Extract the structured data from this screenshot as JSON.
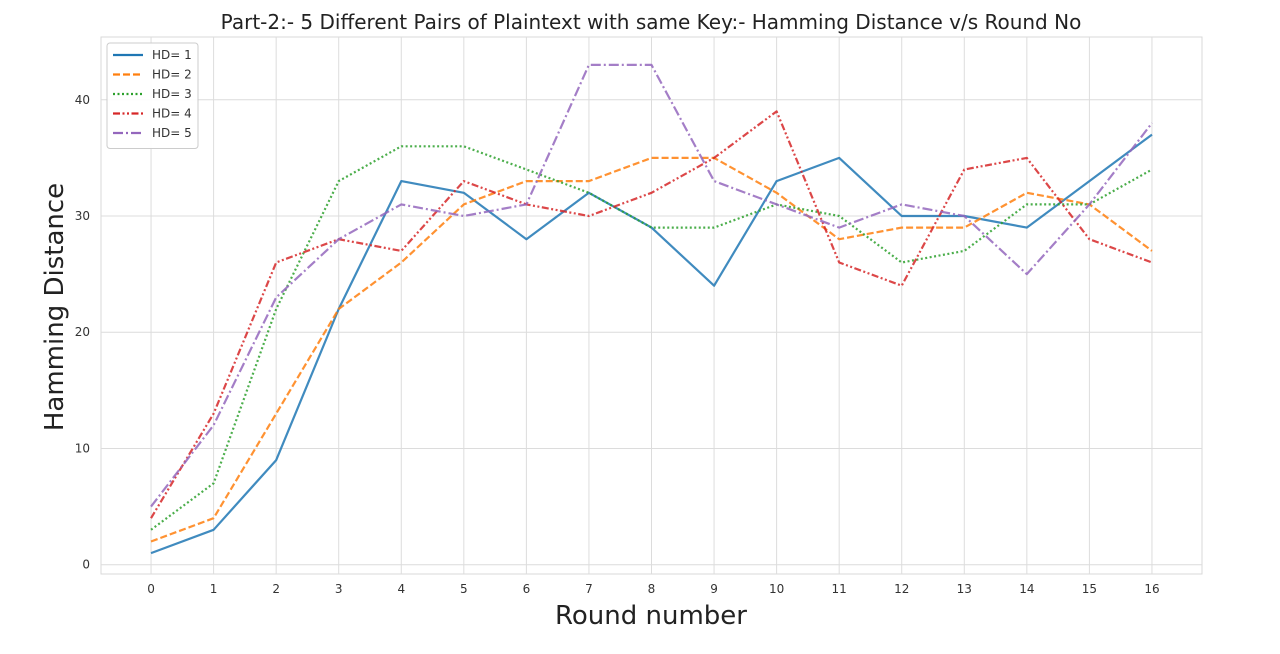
{
  "chart_data": {
    "type": "line",
    "title": "Part-2:- 5 Different Pairs of Plaintext with same Key:- Hamming Distance v/s Round No",
    "xlabel": "Round number",
    "ylabel": "Hamming Distance",
    "x": [
      0,
      1,
      2,
      3,
      4,
      5,
      6,
      7,
      8,
      9,
      10,
      11,
      12,
      13,
      14,
      15,
      16
    ],
    "xlim": [
      -0.8,
      16.8
    ],
    "ylim": [
      -0.8,
      45.4
    ],
    "yticks": [
      0,
      10,
      20,
      30,
      40
    ],
    "grid": true,
    "legend_position": "top-left",
    "series": [
      {
        "name": "HD= 1",
        "color": "#1f77b4",
        "dash": "solid",
        "values": [
          1,
          3,
          9,
          22,
          33,
          32,
          28,
          32,
          29,
          24,
          33,
          35,
          30,
          30,
          29,
          33,
          37
        ]
      },
      {
        "name": "HD= 2",
        "color": "#ff7f0e",
        "dash": "dashed",
        "values": [
          2,
          4,
          13,
          22,
          26,
          31,
          33,
          33,
          35,
          35,
          32,
          28,
          29,
          29,
          32,
          31,
          27
        ]
      },
      {
        "name": "HD= 3",
        "color": "#2ca02c",
        "dash": "dotted",
        "values": [
          3,
          7,
          22,
          33,
          36,
          36,
          34,
          32,
          29,
          29,
          31,
          30,
          26,
          27,
          31,
          31,
          34
        ]
      },
      {
        "name": "HD= 4",
        "color": "#d62728",
        "dash": "dashdotdot",
        "values": [
          4,
          13,
          26,
          28,
          27,
          33,
          31,
          30,
          32,
          35,
          39,
          26,
          24,
          34,
          35,
          28,
          26
        ]
      },
      {
        "name": "HD= 5",
        "color": "#9467bd",
        "dash": "dashdot",
        "values": [
          5,
          12,
          23,
          28,
          31,
          30,
          31,
          43,
          43,
          33,
          31,
          29,
          31,
          30,
          25,
          31,
          38
        ]
      }
    ]
  }
}
